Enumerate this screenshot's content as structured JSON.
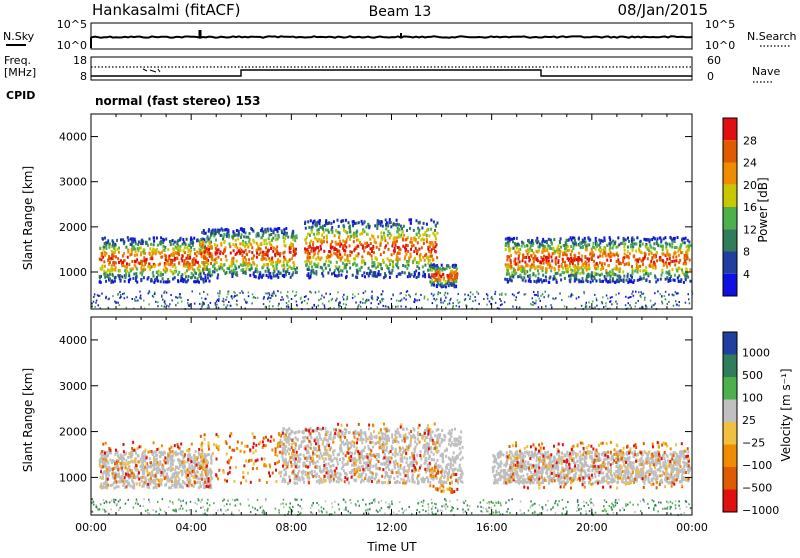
{
  "header": {
    "station": "Hankasalmi (fitACF)",
    "beam": "Beam 13",
    "date": "08/Jan/2015"
  },
  "panels": {
    "nsky_label": "N.Sky",
    "nsearch_label": "N.Search",
    "freq_label_1": "Freq.",
    "freq_label_2": "[MHz]",
    "cpid_label": "CPID",
    "nave_label": "Nave",
    "cpid_text": "normal (fast stereo) 153",
    "nsky_ticks": [
      "10^5",
      "10^0"
    ],
    "nsearch_ticks": [
      "10^5",
      "10^0"
    ],
    "freq_ticks": [
      "18",
      "8"
    ],
    "nave_ticks": [
      "60",
      "0"
    ]
  },
  "colors": {
    "power_scale": [
      "#1010e0",
      "#2040a0",
      "#2f7d5a",
      "#4cb04c",
      "#c8c800",
      "#f08c00",
      "#e05a00",
      "#e01010"
    ],
    "velocity_scale": [
      "#2040a0",
      "#2f7d5a",
      "#4cb04c",
      "#c0c0c0",
      "#f0c040",
      "#f08c00",
      "#e05a00",
      "#e01010"
    ],
    "ground_scatter": "#bebebe"
  },
  "chart_data": [
    {
      "type": "heatmap",
      "title": "",
      "xlabel": "",
      "ylabel": "Slant Range [km]",
      "xlim": [
        "00:00",
        "24:00"
      ],
      "ylim": [
        180,
        4500
      ],
      "yticks": [
        "1000",
        "2000",
        "3000",
        "4000"
      ],
      "colorbar": {
        "label": "Power [dB]",
        "ticks": [
          "4",
          "8",
          "12",
          "16",
          "20",
          "24",
          "28"
        ],
        "range": [
          0,
          30
        ]
      },
      "echo_regions": [
        {
          "t_start": 0.3,
          "t_end": 4.8,
          "r_min": 800,
          "r_max": 1800,
          "peak_power": 28
        },
        {
          "t_start": 4.3,
          "t_end": 8.2,
          "r_min": 900,
          "r_max": 2000,
          "peak_power": 26
        },
        {
          "t_start": 8.5,
          "t_end": 13.8,
          "r_min": 900,
          "r_max": 2200,
          "peak_power": 30
        },
        {
          "t_start": 13.5,
          "t_end": 14.6,
          "r_min": 700,
          "r_max": 1200,
          "peak_power": 30
        },
        {
          "t_start": 16.5,
          "t_end": 23.9,
          "r_min": 800,
          "r_max": 1800,
          "peak_power": 26
        }
      ]
    },
    {
      "type": "heatmap",
      "title": "",
      "xlabel": "Time UT",
      "ylabel": "Slant Range [km]",
      "xlim": [
        "00:00",
        "24:00"
      ],
      "ylim": [
        180,
        4500
      ],
      "xticks": [
        "00:00",
        "04:00",
        "08:00",
        "12:00",
        "16:00",
        "20:00",
        "00:00"
      ],
      "yticks": [
        "1000",
        "2000",
        "3000",
        "4000"
      ],
      "colorbar": {
        "label": "Velocity [m s⁻¹]",
        "ticks": [
          "1000",
          "500",
          "100",
          "25",
          "−25",
          "−100",
          "−500",
          "−1000"
        ]
      },
      "ground_scatter_regions": [
        {
          "t_start": 0.3,
          "t_end": 4.8,
          "r_min": 800,
          "r_max": 1600
        },
        {
          "t_start": 7.5,
          "t_end": 14.8,
          "r_min": 900,
          "r_max": 2100
        },
        {
          "t_start": 16.0,
          "t_end": 23.9,
          "r_min": 900,
          "r_max": 1600
        }
      ]
    }
  ]
}
